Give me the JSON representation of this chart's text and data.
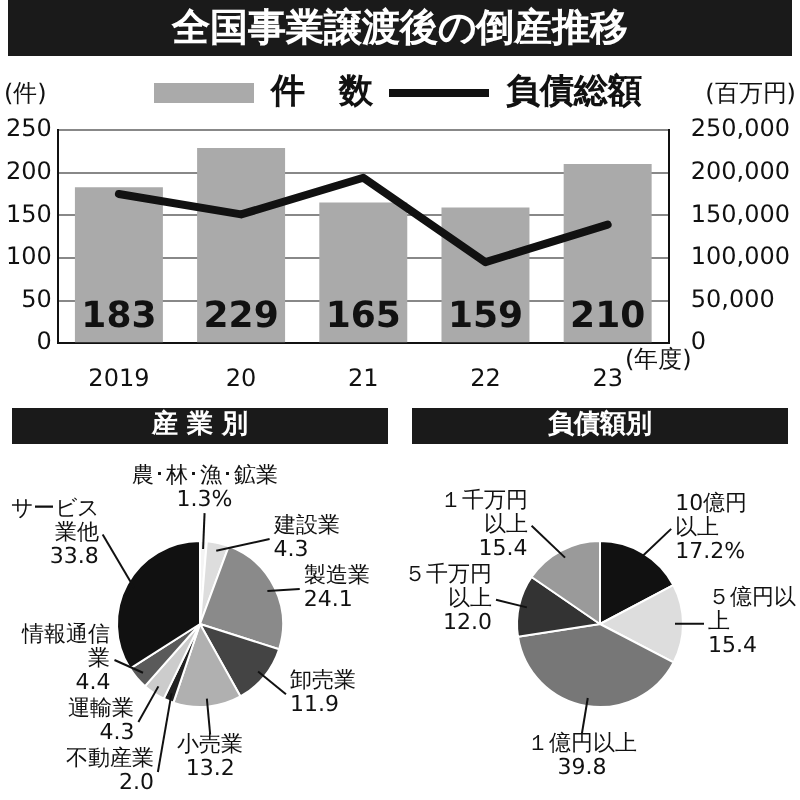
{
  "chart_data": [
    {
      "type": "bar",
      "title": "全国事業譲渡後の倒産推移",
      "categories": [
        "2019",
        "20",
        "21",
        "22",
        "23"
      ],
      "xlabel": "(年度)",
      "ylabel": "(件)",
      "y2label": "(百万円)",
      "series": [
        {
          "name": "件　数",
          "type": "bar",
          "color": "#aaaaaa",
          "values": [
            183,
            229,
            165,
            159,
            210
          ],
          "value_labels": [
            "183",
            "229",
            "165",
            "159",
            "210"
          ]
        },
        {
          "name": "負債総額",
          "type": "line",
          "axis": "y2",
          "color": "#111111",
          "values": [
            175000,
            151000,
            194000,
            95000,
            139000
          ]
        }
      ],
      "ylim": [
        0,
        250
      ],
      "yticks": [
        0,
        50,
        100,
        150,
        200,
        250
      ],
      "y2lim": [
        0,
        250000
      ],
      "y2ticks": [
        0,
        {
          "value": 50000,
          "label": "50,000"
        },
        {
          "value": 100000,
          "label": "100,000"
        },
        {
          "value": 150000,
          "label": "150,000"
        },
        {
          "value": 200000,
          "label": "200,000"
        },
        {
          "value": 250000,
          "label": "250,000"
        }
      ],
      "grid": "y",
      "legend": "top",
      "marker": "none",
      "line_style": "solid"
    },
    {
      "type": "pie",
      "title": "産 業 別",
      "categories": [
        "農･林･漁･鉱業",
        "建設業",
        "製造業",
        "卸売業",
        "小売業",
        "不動産業",
        "運輸業",
        "情報通信業",
        "サービス業他"
      ],
      "values": [
        1.3,
        4.3,
        24.1,
        11.9,
        13.2,
        2.0,
        4.3,
        4.4,
        33.8
      ],
      "colors": [
        "#f4f4f4",
        "#dddddd",
        "#8a8a8a",
        "#444444",
        "#b0b0b0",
        "#222222",
        "#cccccc",
        "#5a5a5a",
        "#111111"
      ],
      "value_labels": [
        "1.3%",
        "4.3",
        "24.1",
        "11.9",
        "13.2",
        "2.0",
        "4.3",
        "4.4",
        "33.8"
      ]
    },
    {
      "type": "pie",
      "title": "負債額別",
      "categories": [
        "10億円以上",
        "５億円以上",
        "１億円以上",
        "５千万円以上",
        "１千万円以上"
      ],
      "values": [
        17.2,
        15.4,
        39.8,
        12.0,
        15.4
      ],
      "colors": [
        "#111111",
        "#dddddd",
        "#777777",
        "#333333",
        "#9a9a9a"
      ],
      "value_labels": [
        "17.2%",
        "15.4",
        "39.8",
        "12.0",
        "15.4"
      ]
    }
  ]
}
